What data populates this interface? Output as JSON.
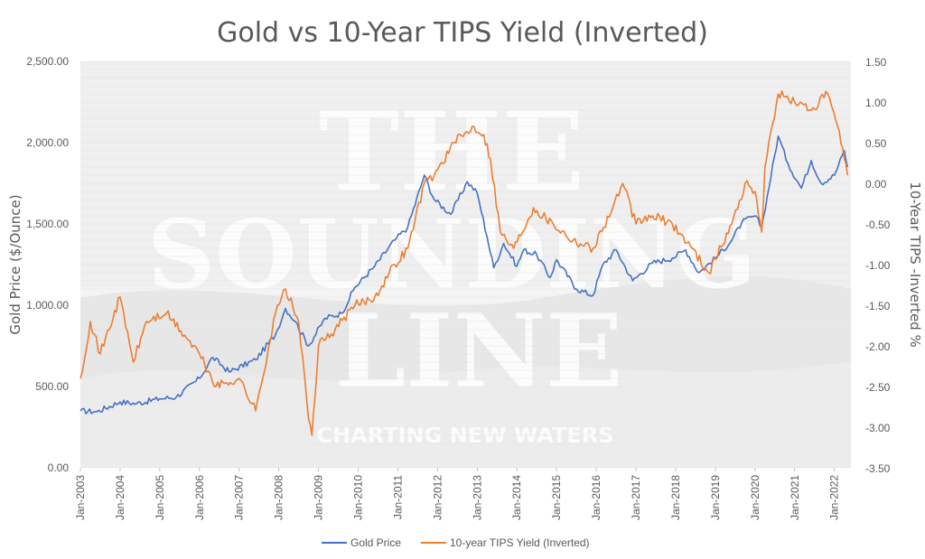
{
  "title": "Gold vs 10-Year TIPS Yield (Inverted)",
  "watermark": {
    "line1": "THE",
    "line2": "SOUNDING",
    "line3": "LINE",
    "tagline": "CHARTING NEW WATERS"
  },
  "colors": {
    "gold": "#4472c4",
    "tips": "#ed7d31",
    "grid": "#e4e4e4",
    "text": "#595959"
  },
  "chart_data": {
    "type": "line",
    "title": "Gold vs 10-Year TIPS Yield (Inverted)",
    "xlabel": "",
    "ylabel": "Gold Price ($/Ounce)",
    "y2label": "10-Year TIPS -Inverted %",
    "xlim": [
      "2003-01",
      "2022-06"
    ],
    "ylim": [
      0,
      2500
    ],
    "y2lim": [
      -3.5,
      1.5
    ],
    "y_ticks": [
      "0.00",
      "500.00",
      "1,000.00",
      "1,500.00",
      "2,000.00",
      "2,500.00"
    ],
    "y2_ticks": [
      "-3.50",
      "-3.00",
      "-2.50",
      "-2.00",
      "-1.50",
      "-1.00",
      "-0.50",
      "0.00",
      "0.50",
      "1.00",
      "1.50"
    ],
    "x_ticks": [
      "Jan-2003",
      "Jan-2004",
      "Jan-2005",
      "Jan-2006",
      "Jan-2007",
      "Jan-2008",
      "Jan-2009",
      "Jan-2010",
      "Jan-2011",
      "Jan-2012",
      "Jan-2013",
      "Jan-2014",
      "Jan-2015",
      "Jan-2016",
      "Jan-2017",
      "Jan-2018",
      "Jan-2019",
      "Jan-2020",
      "Jan-2021",
      "Jan-2022"
    ],
    "grid": true,
    "legend_position": "bottom",
    "series": [
      {
        "name": "Gold Price",
        "axis": "left",
        "x": [
          "2003-01",
          "2003-06",
          "2004-01",
          "2004-06",
          "2005-01",
          "2005-06",
          "2006-01",
          "2006-05",
          "2006-10",
          "2007-06",
          "2007-12",
          "2008-03",
          "2008-06",
          "2008-10",
          "2009-03",
          "2009-08",
          "2009-12",
          "2010-06",
          "2010-12",
          "2011-04",
          "2011-09",
          "2011-12",
          "2012-05",
          "2012-10",
          "2013-01",
          "2013-04",
          "2013-06",
          "2013-09",
          "2014-01",
          "2014-03",
          "2014-07",
          "2014-11",
          "2015-01",
          "2015-07",
          "2015-12",
          "2016-03",
          "2016-07",
          "2016-12",
          "2017-06",
          "2017-12",
          "2018-04",
          "2018-08",
          "2019-01",
          "2019-06",
          "2019-09",
          "2020-01",
          "2020-03",
          "2020-08",
          "2020-11",
          "2021-03",
          "2021-06",
          "2021-09",
          "2022-01",
          "2022-04",
          "2022-05"
        ],
        "values": [
          350,
          345,
          405,
          395,
          425,
          435,
          550,
          680,
          590,
          665,
          820,
          980,
          900,
          750,
          920,
          950,
          1110,
          1240,
          1400,
          1480,
          1800,
          1650,
          1560,
          1760,
          1690,
          1420,
          1230,
          1380,
          1240,
          1340,
          1310,
          1170,
          1280,
          1100,
          1060,
          1250,
          1340,
          1150,
          1260,
          1290,
          1340,
          1200,
          1290,
          1400,
          1510,
          1550,
          1480,
          2040,
          1870,
          1720,
          1890,
          1750,
          1800,
          1950,
          1850
        ]
      },
      {
        "name": "10-year TIPS Yield (Inverted)",
        "axis": "right",
        "x": [
          "2003-01",
          "2003-04",
          "2003-07",
          "2004-01",
          "2004-05",
          "2004-09",
          "2005-03",
          "2005-09",
          "2006-01",
          "2006-06",
          "2007-01",
          "2007-06",
          "2007-12",
          "2008-03",
          "2008-07",
          "2008-10",
          "2008-11",
          "2009-01",
          "2009-06",
          "2009-12",
          "2010-06",
          "2010-12",
          "2011-04",
          "2011-09",
          "2011-12",
          "2012-06",
          "2012-12",
          "2013-03",
          "2013-05",
          "2013-08",
          "2013-12",
          "2014-06",
          "2014-12",
          "2015-06",
          "2015-12",
          "2016-06",
          "2016-09",
          "2017-01",
          "2017-06",
          "2017-12",
          "2018-06",
          "2018-11",
          "2019-06",
          "2019-10",
          "2020-01",
          "2020-03",
          "2020-04",
          "2020-08",
          "2021-01",
          "2021-06",
          "2021-11",
          "2022-02",
          "2022-04",
          "2022-05"
        ],
        "values": [
          -2.4,
          -1.7,
          -2.1,
          -1.4,
          -2.2,
          -1.7,
          -1.6,
          -1.9,
          -2.1,
          -2.5,
          -2.4,
          -2.8,
          -1.6,
          -1.3,
          -1.7,
          -2.9,
          -3.1,
          -2.0,
          -1.8,
          -1.5,
          -1.4,
          -1.0,
          -0.8,
          0.0,
          0.1,
          0.5,
          0.7,
          0.6,
          0.3,
          -0.6,
          -0.8,
          -0.3,
          -0.5,
          -0.7,
          -0.8,
          -0.3,
          0.0,
          -0.5,
          -0.4,
          -0.5,
          -0.8,
          -1.1,
          -0.5,
          0.0,
          -0.1,
          -0.6,
          0.2,
          1.1,
          1.0,
          0.9,
          1.1,
          0.7,
          0.3,
          0.1
        ]
      }
    ]
  }
}
